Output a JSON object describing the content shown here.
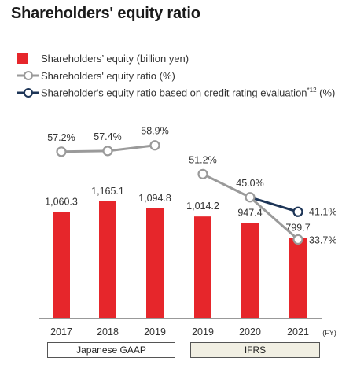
{
  "title": "Shareholders' equity ratio",
  "legend": {
    "equity": "Shareholders’ equity (billion yen)",
    "ratio": "Shareholders' equity ratio (%)",
    "credit_ratio": "Shareholder's equity ratio based on credit rating evaluation",
    "credit_ratio_sup": "*12",
    "credit_ratio_unit": "(%)"
  },
  "standards": {
    "jgaap": "Japanese GAAP",
    "ifrs": "IFRS"
  },
  "colors": {
    "bar": "#e6262b",
    "ratio_line": "#9a9a9a",
    "credit_line": "#1d3557",
    "ifrs_box": "#f1efe3"
  },
  "chart_data": {
    "type": "bar",
    "xlabel": "(FY)",
    "categories": [
      "2017",
      "2018",
      "2019",
      "2019",
      "2020",
      "2021"
    ],
    "series": [
      {
        "name": "Shareholders’ equity (billion yen)",
        "type": "bar",
        "values": [
          1060.3,
          1165.1,
          1094.8,
          1014.2,
          947.4,
          799.7
        ],
        "labels": [
          "1,060.3",
          "1,165.1",
          "1,094.8",
          "1,014.2",
          "947.4",
          "799.7"
        ]
      },
      {
        "name": "Shareholders' equity ratio (%)",
        "type": "line",
        "segments": [
          {
            "standard": "Japanese GAAP",
            "indices": [
              0,
              1,
              2
            ],
            "values": [
              57.2,
              57.4,
              58.9
            ],
            "labels": [
              "57.2%",
              "57.4%",
              "58.9%"
            ]
          },
          {
            "standard": "IFRS",
            "indices": [
              3,
              4,
              5
            ],
            "values": [
              51.2,
              45.0,
              33.7
            ],
            "labels": [
              "51.2%",
              "45.0%",
              "33.7%"
            ]
          }
        ]
      },
      {
        "name": "Shareholder's equity ratio based on credit rating evaluation*12 (%)",
        "type": "line",
        "segments": [
          {
            "standard": "IFRS",
            "indices": [
              4,
              5
            ],
            "values": [
              45.0,
              41.1
            ],
            "labels": [
              "",
              "41.1%"
            ]
          }
        ]
      }
    ]
  }
}
